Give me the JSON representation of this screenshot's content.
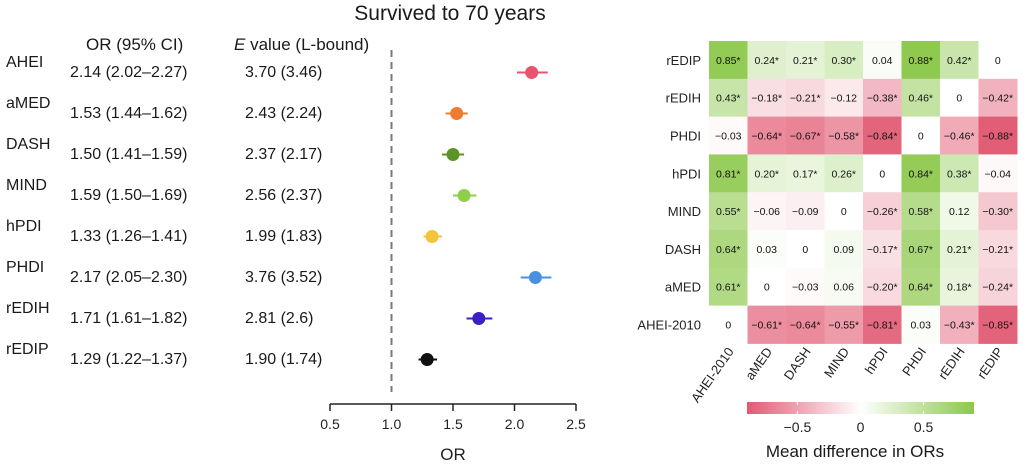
{
  "chart_data": [
    {
      "type": "scatter",
      "title": "Survived to 70 years",
      "col_headers": {
        "or": "OR (95% CI)",
        "evalue_prefix": "E",
        "evalue_rest": " value (L-bound)"
      },
      "xlabel": "OR",
      "xlim": [
        0.5,
        2.5
      ],
      "xticks": [
        "0.5",
        "1.0",
        "1.5",
        "2.0",
        "2.5"
      ],
      "reference_line": 1.0,
      "rows": [
        {
          "name": "AHEI",
          "or_text": "2.14 (2.02–2.27)",
          "evalue": "3.70 (3.46)",
          "or": 2.14,
          "lo": 2.02,
          "hi": 2.27,
          "color": "#e8546d"
        },
        {
          "name": "aMED",
          "or_text": "1.53 (1.44–1.62)",
          "evalue": "2.43 (2.24)",
          "or": 1.53,
          "lo": 1.44,
          "hi": 1.62,
          "color": "#f07a30"
        },
        {
          "name": "DASH",
          "or_text": "1.50 (1.41–1.59)",
          "evalue": "2.37 (2.17)",
          "or": 1.5,
          "lo": 1.41,
          "hi": 1.59,
          "color": "#5a9426"
        },
        {
          "name": "MIND",
          "or_text": "1.59 (1.50–1.69)",
          "evalue": "2.56 (2.37)",
          "or": 1.59,
          "lo": 1.5,
          "hi": 1.69,
          "color": "#8fcf4a"
        },
        {
          "name": "hPDI",
          "or_text": "1.33 (1.26–1.41)",
          "evalue": "1.99 (1.83)",
          "or": 1.33,
          "lo": 1.26,
          "hi": 1.41,
          "color": "#f5c23a"
        },
        {
          "name": "PHDI",
          "or_text": "2.17 (2.05–2.30)",
          "evalue": "3.76 (3.52)",
          "or": 2.17,
          "lo": 2.05,
          "hi": 2.3,
          "color": "#4a90e2"
        },
        {
          "name": "rEDIH",
          "or_text": "1.71 (1.61–1.82)",
          "evalue": "2.81 (2.6)",
          "or": 1.71,
          "lo": 1.61,
          "hi": 1.82,
          "color": "#3d1fc4"
        },
        {
          "name": "rEDIP",
          "or_text": "1.29 (1.22–1.37)",
          "evalue": "1.90 (1.74)",
          "or": 1.29,
          "lo": 1.22,
          "hi": 1.37,
          "color": "#111111"
        }
      ]
    },
    {
      "type": "heatmap",
      "rows": [
        "rEDIP",
        "rEDIH",
        "PHDI",
        "hPDI",
        "MIND",
        "DASH",
        "aMED",
        "AHEI-2010"
      ],
      "columns": [
        "AHEI-2010",
        "aMED",
        "DASH",
        "MIND",
        "hPDI",
        "PHDI",
        "rEDIH",
        "rEDIP"
      ],
      "values": [
        [
          0.85,
          0.24,
          0.21,
          0.3,
          0.04,
          0.88,
          0.42,
          0
        ],
        [
          0.43,
          -0.18,
          -0.21,
          -0.12,
          -0.38,
          0.46,
          0,
          -0.42
        ],
        [
          -0.03,
          -0.64,
          -0.67,
          -0.58,
          -0.84,
          0,
          -0.46,
          -0.88
        ],
        [
          0.81,
          0.2,
          0.17,
          0.26,
          0,
          0.84,
          0.38,
          -0.04
        ],
        [
          0.55,
          -0.06,
          -0.09,
          0,
          -0.26,
          0.58,
          0.12,
          -0.3
        ],
        [
          0.64,
          0.03,
          0,
          0.09,
          -0.17,
          0.67,
          0.21,
          -0.21
        ],
        [
          0.61,
          0,
          -0.03,
          0.06,
          -0.2,
          0.64,
          0.18,
          -0.24
        ],
        [
          0,
          -0.61,
          -0.64,
          -0.55,
          -0.81,
          0.03,
          -0.43,
          -0.85
        ]
      ],
      "labels": [
        [
          "0.85*",
          "0.24*",
          "0.21*",
          "0.30*",
          "0.04",
          "0.88*",
          "0.42*",
          "0"
        ],
        [
          "0.43*",
          "−0.18*",
          "−0.21*",
          "−0.12",
          "−0.38*",
          "0.46*",
          "0",
          "−0.42*"
        ],
        [
          "−0.03",
          "−0.64*",
          "−0.67*",
          "−0.58*",
          "−0.84*",
          "0",
          "−0.46*",
          "−0.88*"
        ],
        [
          "0.81*",
          "0.20*",
          "0.17*",
          "0.26*",
          "0",
          "0.84*",
          "0.38*",
          "−0.04"
        ],
        [
          "0.55*",
          "−0.06",
          "−0.09",
          "0",
          "−0.26*",
          "0.58*",
          "0.12",
          "−0.30*"
        ],
        [
          "0.64*",
          "0.03",
          "0",
          "0.09",
          "−0.17*",
          "0.67*",
          "0.21*",
          "−0.21*"
        ],
        [
          "0.61*",
          "0",
          "−0.03",
          "0.06",
          "−0.20*",
          "0.64*",
          "0.18*",
          "−0.24*"
        ],
        [
          "0",
          "−0.61*",
          "−0.64*",
          "−0.55*",
          "−0.81*",
          "0.03",
          "−0.43*",
          "−0.85*"
        ]
      ],
      "colorbar_range": [
        -0.9,
        0.9
      ],
      "colorbar_ticks": [
        "−0.5",
        "0",
        "0.5"
      ],
      "colorbar_title": "Mean difference in ORs",
      "colors": {
        "neg": "#e15a73",
        "mid": "#ffffff",
        "pos": "#8cc84b"
      }
    }
  ]
}
